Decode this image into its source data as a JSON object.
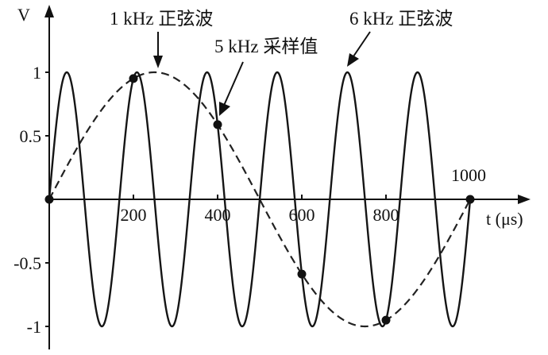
{
  "chart_data": {
    "type": "line",
    "x_unit_label": "t (μs)",
    "y_label": "V",
    "xlim": [
      0,
      1000
    ],
    "ylim": [
      -1,
      1
    ],
    "x_ticks": [
      200,
      400,
      600,
      800
    ],
    "x_tick_labels": [
      "200",
      "400",
      "600",
      "800"
    ],
    "end_label": "1000",
    "y_ticks": [
      1,
      0.5,
      -0.5,
      -1
    ],
    "y_tick_labels": [
      "1",
      "0.5",
      "-0.5",
      "-1"
    ],
    "series": [
      {
        "name": "1 kHz 正弦波",
        "frequency_khz": 1,
        "style": "dashed",
        "amplitude": 1
      },
      {
        "name": "6 kHz 正弦波",
        "frequency_khz": 6,
        "style": "solid",
        "amplitude": 1
      }
    ],
    "samples": {
      "name": "5 kHz 采样值",
      "x": [
        0,
        200,
        400,
        600,
        800,
        1000
      ],
      "y": [
        0,
        0.951,
        0.588,
        -0.588,
        -0.951,
        0
      ]
    },
    "annotations": [
      {
        "text": "1 kHz 正弦波",
        "points_to_x": 250,
        "points_to_y": 1.0
      },
      {
        "text": "5 kHz 采样值",
        "points_to_x": 400,
        "points_to_y": 0.588
      },
      {
        "text": "6 kHz 正弦波",
        "points_to_x": 708,
        "points_to_y": 1.0
      }
    ]
  }
}
